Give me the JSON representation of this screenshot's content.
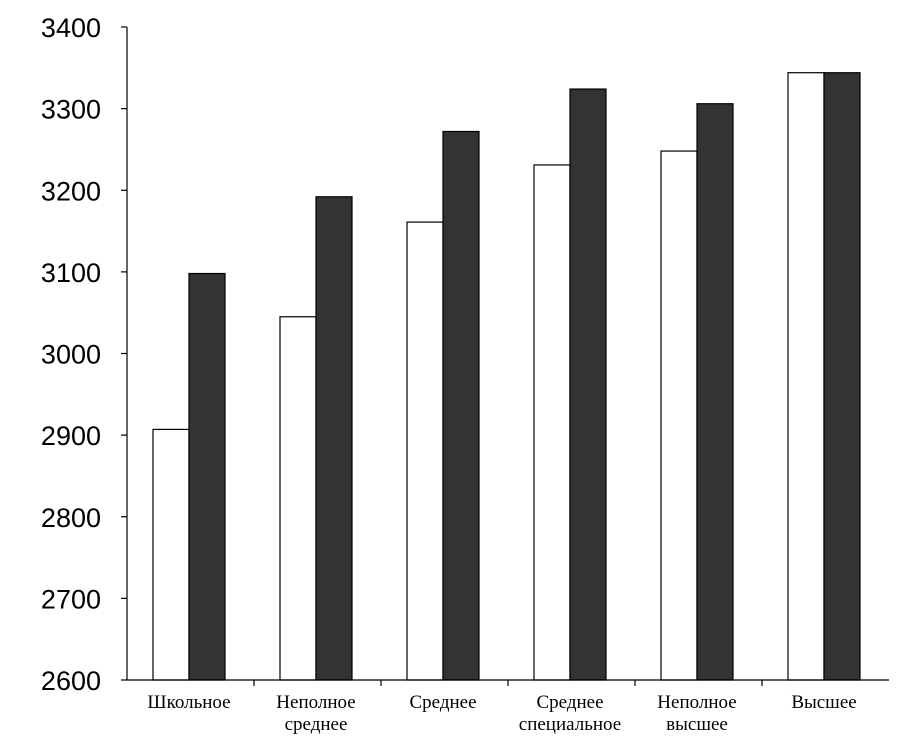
{
  "chart_data": {
    "type": "bar",
    "title": "",
    "xlabel": "",
    "ylabel": "",
    "ylim": [
      2600,
      3400
    ],
    "yticks": [
      2600,
      2700,
      2800,
      2900,
      3000,
      3100,
      3200,
      3300,
      3400
    ],
    "grid": false,
    "legend": "none",
    "categories": [
      [
        "Школьное"
      ],
      [
        "Неполное",
        "среднее"
      ],
      [
        "Среднее"
      ],
      [
        "Среднее",
        "специальное"
      ],
      [
        "Неполное",
        "высшее"
      ],
      [
        "Высшее"
      ]
    ],
    "series": [
      {
        "color": "#ffffff",
        "values": [
          2907,
          3045,
          3161,
          3231,
          3248,
          3344
        ]
      },
      {
        "color": "#333333",
        "values": [
          3098,
          3192,
          3272,
          3324,
          3306,
          3344
        ]
      }
    ]
  }
}
